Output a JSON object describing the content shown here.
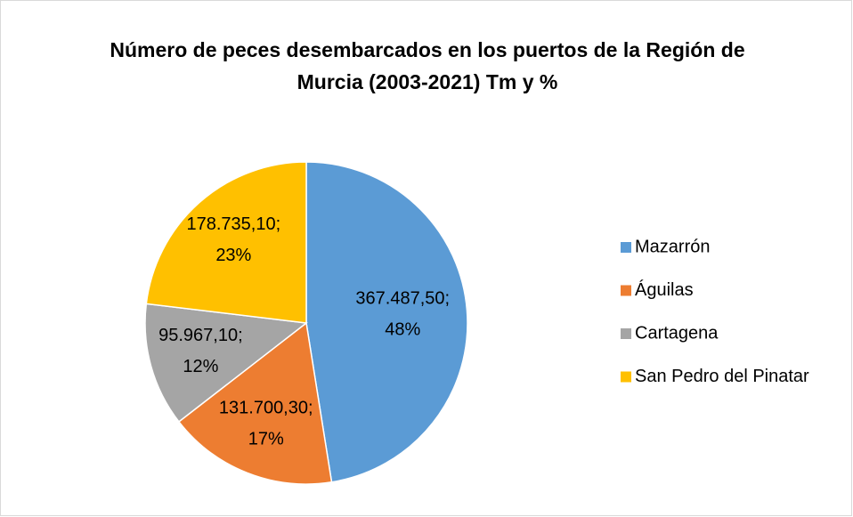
{
  "chart_data": {
    "type": "pie",
    "title": "Número de peces desembarcados en los puertos de la Región de Murcia (2003-2021) Tm y %",
    "categories": [
      "Mazarrón",
      "Águilas",
      "Cartagena",
      "San Pedro del Pinatar"
    ],
    "values": [
      367487.5,
      131700.3,
      95967.1,
      178735.1
    ],
    "value_labels": [
      "367.487,50;",
      "131.700,30;",
      "95.967,10;",
      "178.735,10;"
    ],
    "percents": [
      48,
      17,
      12,
      23
    ],
    "percent_labels": [
      "48%",
      "17%",
      "12%",
      "23%"
    ],
    "colors": [
      "#5b9bd5",
      "#ed7d31",
      "#a5a5a5",
      "#ffc000"
    ],
    "legend": "right"
  }
}
